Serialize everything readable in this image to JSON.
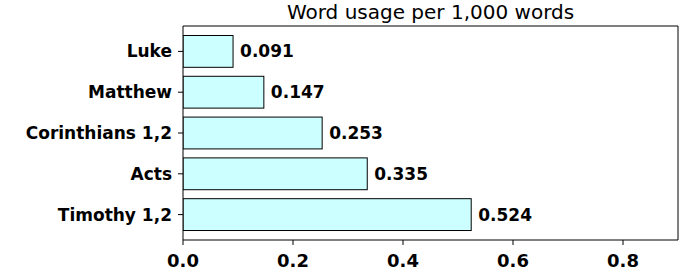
{
  "chart_data": {
    "type": "bar",
    "title": "Word usage per 1,000 words",
    "orientation": "horizontal",
    "categories": [
      "Luke",
      "Matthew",
      "Corinthians 1,2",
      "Acts",
      "Timothy 1,2"
    ],
    "values": [
      0.091,
      0.147,
      0.253,
      0.335,
      0.524
    ],
    "color": "#ccffff",
    "xlim": [
      0,
      0.9
    ],
    "xticks": [
      {
        "value": 0,
        "label": "0.0"
      },
      0.2,
      0.4,
      0.6,
      0.8
    ],
    "data_labels": true,
    "grid": false
  }
}
